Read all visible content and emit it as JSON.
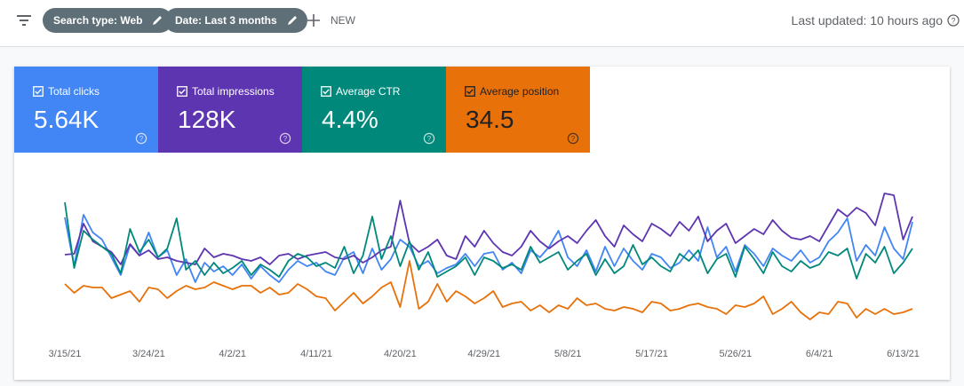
{
  "toolbar": {
    "chips": [
      "Search type: Web",
      "Date: Last 3 months"
    ],
    "new_button": "NEW",
    "last_updated": "Last updated: 10 hours ago"
  },
  "chart_data": {
    "type": "line",
    "categories": [
      "3/15/21",
      null,
      null,
      null,
      null,
      null,
      null,
      null,
      null,
      "3/24/21",
      null,
      null,
      null,
      null,
      null,
      null,
      null,
      null,
      "4/2/21",
      null,
      null,
      null,
      null,
      null,
      null,
      null,
      null,
      "4/11/21",
      null,
      null,
      null,
      null,
      null,
      null,
      null,
      null,
      "4/20/21",
      null,
      null,
      null,
      null,
      null,
      null,
      null,
      null,
      "4/29/21",
      null,
      null,
      null,
      null,
      null,
      null,
      null,
      null,
      "5/8/21",
      null,
      null,
      null,
      null,
      null,
      null,
      null,
      null,
      "5/17/21",
      null,
      null,
      null,
      null,
      null,
      null,
      null,
      null,
      "5/26/21",
      null,
      null,
      null,
      null,
      null,
      null,
      null,
      null,
      "6/4/21",
      null,
      null,
      null,
      null,
      null,
      null,
      null,
      null,
      "6/13/21",
      null
    ],
    "ylim": [
      0,
      170
    ],
    "series": [
      {
        "name": "Total clicks",
        "total": "5.64K",
        "color": "#4285f4",
        "values": [
          125,
          70,
          128,
          108,
          100,
          80,
          60,
          94,
          82,
          108,
          80,
          88,
          60,
          78,
          52,
          74,
          64,
          70,
          60,
          72,
          56,
          70,
          60,
          52,
          66,
          76,
          70,
          74,
          64,
          60,
          80,
          86,
          62,
          90,
          66,
          78,
          100,
          92,
          70,
          76,
          62,
          68,
          72,
          84,
          70,
          84,
          86,
          66,
          74,
          62,
          88,
          80,
          92,
          110,
          80,
          70,
          88,
          64,
          92,
          70,
          90,
          76,
          66,
          84,
          80,
          68,
          74,
          88,
          76,
          114,
          80,
          92,
          64,
          94,
          84,
          70,
          90,
          82,
          76,
          88,
          74,
          80,
          98,
          108,
          124,
          76,
          94,
          82,
          114,
          90,
          78,
          120
        ]
      },
      {
        "name": "Total impressions",
        "total": "128K",
        "color": "#5e35b1",
        "values": [
          83,
          84,
          118,
          98,
          92,
          86,
          72,
          95,
          82,
          88,
          78,
          80,
          76,
          74,
          72,
          90,
          80,
          84,
          82,
          78,
          76,
          80,
          72,
          82,
          84,
          78,
          82,
          84,
          86,
          80,
          78,
          82,
          74,
          80,
          88,
          92,
          144,
          96,
          86,
          92,
          100,
          82,
          78,
          104,
          92,
          110,
          96,
          86,
          82,
          92,
          110,
          98,
          90,
          98,
          104,
          96,
          110,
          122,
          104,
          92,
          116,
          106,
          98,
          118,
          112,
          104,
          120,
          110,
          126,
          98,
          110,
          118,
          96,
          104,
          112,
          106,
          122,
          110,
          102,
          100,
          104,
          98,
          116,
          134,
          126,
          136,
          130,
          116,
          152,
          150,
          100,
          126
        ]
      },
      {
        "name": "Average CTR",
        "total": "4.4%",
        "color": "#00897b",
        "values": [
          142,
          68,
          110,
          100,
          92,
          84,
          62,
          112,
          86,
          100,
          80,
          90,
          124,
          66,
          76,
          60,
          74,
          62,
          68,
          76,
          60,
          72,
          66,
          58,
          76,
          84,
          80,
          70,
          74,
          68,
          92,
          62,
          82,
          126,
          78,
          104,
          70,
          98,
          66,
          86,
          58,
          64,
          70,
          80,
          60,
          80,
          76,
          68,
          72,
          66,
          92,
          74,
          80,
          86,
          66,
          76,
          84,
          60,
          78,
          62,
          70,
          94,
          72,
          80,
          70,
          64,
          84,
          76,
          88,
          62,
          78,
          84,
          58,
          92,
          78,
          62,
          86,
          70,
          64,
          76,
          68,
          72,
          86,
          82,
          90,
          56,
          84,
          74,
          92,
          62,
          74,
          90
        ]
      },
      {
        "name": "Average position",
        "total": "34.5",
        "color": "#e8710a",
        "values": [
          50,
          40,
          48,
          46,
          46,
          34,
          38,
          42,
          30,
          46,
          44,
          34,
          42,
          48,
          44,
          46,
          52,
          48,
          44,
          48,
          48,
          40,
          46,
          38,
          40,
          50,
          44,
          36,
          34,
          20,
          30,
          40,
          28,
          36,
          46,
          52,
          24,
          76,
          22,
          30,
          50,
          30,
          42,
          36,
          28,
          34,
          42,
          24,
          28,
          30,
          20,
          26,
          18,
          26,
          22,
          34,
          26,
          28,
          22,
          20,
          24,
          22,
          18,
          30,
          28,
          20,
          22,
          26,
          28,
          24,
          22,
          16,
          26,
          24,
          28,
          36,
          16,
          22,
          30,
          18,
          10,
          18,
          16,
          30,
          28,
          12,
          22,
          16,
          22,
          16,
          18,
          22
        ]
      }
    ]
  }
}
